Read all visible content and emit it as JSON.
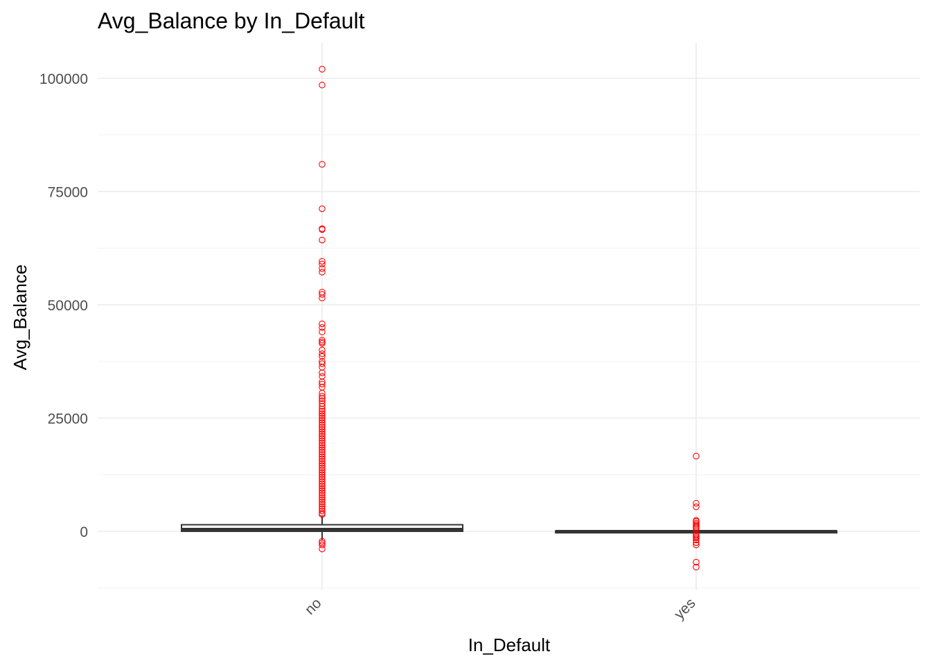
{
  "chart_data": {
    "type": "box",
    "title": "Avg_Balance by In_Default",
    "xlabel": "In_Default",
    "ylabel": "Avg_Balance",
    "categories": [
      "no",
      "yes"
    ],
    "ylim": [
      -12500,
      107500
    ],
    "y_ticks": [
      0,
      25000,
      50000,
      75000,
      100000
    ],
    "y_tick_labels": [
      "0",
      "25000",
      "50000",
      "75000",
      "100000"
    ],
    "grid": true,
    "outlier_color": "#ff0000",
    "box_color": "#333333",
    "boxes": [
      {
        "category": "no",
        "q1": 0,
        "median": 450,
        "q3": 1450,
        "whisker_low": -2000,
        "whisker_high": 3500,
        "outliers": [
          102000,
          98500,
          81000,
          71200,
          66800,
          66600,
          64300,
          59600,
          59000,
          58000,
          57200,
          52800,
          52300,
          51500,
          45800,
          45000,
          44000,
          42200,
          41800,
          41500,
          40000,
          39200,
          38600,
          37500,
          37000,
          36200,
          35000,
          34200,
          33000,
          32500,
          31800,
          30500,
          29800,
          29300,
          28800,
          28200,
          27600,
          27000,
          26500,
          26000,
          25500,
          25000,
          24500,
          24000,
          23500,
          23000,
          22500,
          22000,
          21500,
          21000,
          20500,
          20000,
          19500,
          19000,
          18500,
          18000,
          17500,
          17000,
          16500,
          16000,
          15500,
          15000,
          14500,
          14000,
          13500,
          13000,
          12500,
          12000,
          11500,
          11000,
          10500,
          10000,
          9500,
          9000,
          8500,
          8000,
          7500,
          7000,
          6500,
          6000,
          5500,
          5000,
          4500,
          4000,
          3700,
          -2200,
          -2600,
          -3000,
          -3900
        ]
      },
      {
        "category": "yes",
        "q1": -100,
        "median": 0,
        "q3": 50,
        "whisker_low": -400,
        "whisker_high": 200,
        "outliers": [
          16600,
          6200,
          5400,
          2400,
          2200,
          1800,
          1500,
          1200,
          900,
          600,
          -600,
          -900,
          -1200,
          -1500,
          -1900,
          -2500,
          -3000,
          -6800,
          -7900
        ]
      }
    ]
  }
}
